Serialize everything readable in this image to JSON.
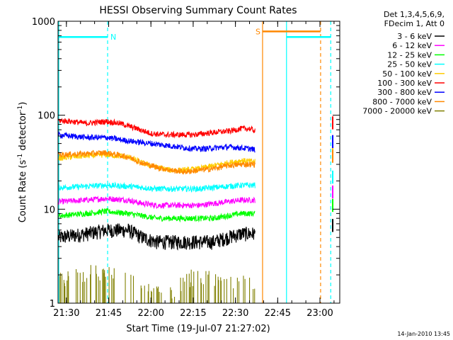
{
  "chart_data": {
    "type": "line",
    "title": "HESSI Observing Summary Count Rates",
    "xlabel": "Start Time (19-Jul-07 21:27:02)",
    "ylabel_main": "Count Rate (s",
    "ylabel_sup1": "-1",
    "ylabel_mid": " detector",
    "ylabel_sup2": "-1",
    "ylabel_end": ")",
    "y_scale": "log",
    "xlim_minutes": [
      0,
      100
    ],
    "ylim": [
      1,
      1000
    ],
    "x_ticks": [
      {
        "t": 2.97,
        "label": "21:30"
      },
      {
        "t": 17.97,
        "label": "21:45"
      },
      {
        "t": 32.97,
        "label": "22:00"
      },
      {
        "t": 47.97,
        "label": "22:15"
      },
      {
        "t": 62.97,
        "label": "22:30"
      },
      {
        "t": 77.97,
        "label": "22:45"
      },
      {
        "t": 92.97,
        "label": "23:00"
      }
    ],
    "y_ticks": [
      {
        "v": 1,
        "label": "1"
      },
      {
        "v": 10,
        "label": "10"
      },
      {
        "v": 100,
        "label": "100"
      },
      {
        "v": 1000,
        "label": "1000"
      }
    ],
    "legend_header": [
      "Det 1,3,4,5,6,9,",
      "FDecim 1, Att 0"
    ],
    "series": [
      {
        "name": "3 - 6 keV",
        "color": "#000000",
        "t": [
          0,
          10,
          17,
          25,
          30,
          35,
          40,
          45,
          50,
          55,
          60,
          65,
          70
        ],
        "values": [
          5,
          5.5,
          6,
          6,
          5,
          4.5,
          4.5,
          4.5,
          4.5,
          4.5,
          5,
          5.5,
          5.5
        ]
      },
      {
        "name": "6 - 12 keV",
        "color": "#ff00ff",
        "t": [
          0,
          10,
          17,
          25,
          30,
          35,
          40,
          45,
          50,
          55,
          60,
          65,
          70
        ],
        "values": [
          12,
          12.5,
          13,
          12.5,
          11.5,
          11,
          11,
          11,
          11,
          11.5,
          12,
          12.5,
          12.5
        ]
      },
      {
        "name": "12 - 25 keV",
        "color": "#00ff00",
        "t": [
          0,
          10,
          17,
          25,
          30,
          35,
          40,
          45,
          50,
          55,
          60,
          65,
          70
        ],
        "values": [
          8.5,
          9,
          9.5,
          9,
          8.5,
          8,
          8,
          8,
          8,
          8,
          8.5,
          9,
          9
        ]
      },
      {
        "name": "25 - 50 keV",
        "color": "#00ffff",
        "t": [
          0,
          10,
          17,
          25,
          30,
          35,
          40,
          45,
          50,
          55,
          60,
          65,
          70
        ],
        "values": [
          17,
          17.5,
          18,
          17.5,
          17,
          16.5,
          16.5,
          16.5,
          16.5,
          17,
          17.5,
          18,
          18
        ]
      },
      {
        "name": "50 - 100 keV",
        "color": "#ffcc00",
        "t": [
          0,
          10,
          17,
          25,
          30,
          35,
          40,
          45,
          50,
          55,
          60,
          65,
          70
        ],
        "values": [
          35,
          37,
          38,
          36,
          31,
          28,
          26,
          26,
          27,
          29,
          31,
          33,
          32
        ]
      },
      {
        "name": "100 - 300 keV",
        "color": "#ff0000",
        "t": [
          0,
          5,
          10,
          17,
          22,
          28,
          33,
          38,
          43,
          48,
          52,
          56,
          61,
          65,
          68,
          70
        ],
        "values": [
          88,
          86,
          82,
          86,
          82,
          72,
          64,
          62,
          62,
          62,
          64,
          66,
          68,
          72,
          72,
          68
        ]
      },
      {
        "name": "300 - 800 keV",
        "color": "#0000ff",
        "t": [
          0,
          5,
          10,
          17,
          22,
          28,
          33,
          38,
          43,
          48,
          52,
          56,
          61,
          65,
          68,
          70
        ],
        "values": [
          62,
          60,
          58,
          58,
          55,
          52,
          50,
          48,
          46,
          44,
          44,
          45,
          46,
          45,
          44,
          43
        ]
      },
      {
        "name": "800 - 7000 keV",
        "color": "#ff8800",
        "t": [
          0,
          10,
          17,
          25,
          30,
          35,
          40,
          45,
          50,
          55,
          60,
          65,
          70
        ],
        "values": [
          38,
          39,
          40,
          36,
          31,
          28,
          26,
          25,
          26,
          27,
          29,
          30,
          30
        ]
      },
      {
        "name": "7000 - 20000 keV",
        "color": "#808000",
        "t": [
          0,
          10,
          17,
          25,
          30,
          35,
          40,
          45,
          50,
          55,
          60,
          65,
          70
        ],
        "values": [
          1.5,
          1.8,
          2,
          1.5,
          1.3,
          1.2,
          1.2,
          1.5,
          1.8,
          1.6,
          1.5,
          1.5,
          1.5
        ]
      }
    ],
    "flags": [
      {
        "label": "N",
        "color": "#00ffff",
        "t_start": 0,
        "t_end": 17.6,
        "value": 680
      },
      {
        "label": "S",
        "color": "#ff8800",
        "t_start": 72.6,
        "t_end": 93.2,
        "value": 780
      },
      {
        "label": "",
        "color": "#00ffff",
        "t_start": 81.1,
        "t_end": 96.8,
        "value": 680
      }
    ],
    "verticals": [
      {
        "t": 17.6,
        "color": "#00ffff",
        "style": "dashed"
      },
      {
        "t": 72.6,
        "color": "#ff8800",
        "style": "solid"
      },
      {
        "t": 81.1,
        "color": "#00ffff",
        "style": "solid"
      },
      {
        "t": 93.2,
        "color": "#ff8800",
        "style": "dashed"
      },
      {
        "t": 96.8,
        "color": "#00ffff",
        "style": "dashed"
      }
    ],
    "date_stamp": "14-Jan-2010 13:45"
  }
}
